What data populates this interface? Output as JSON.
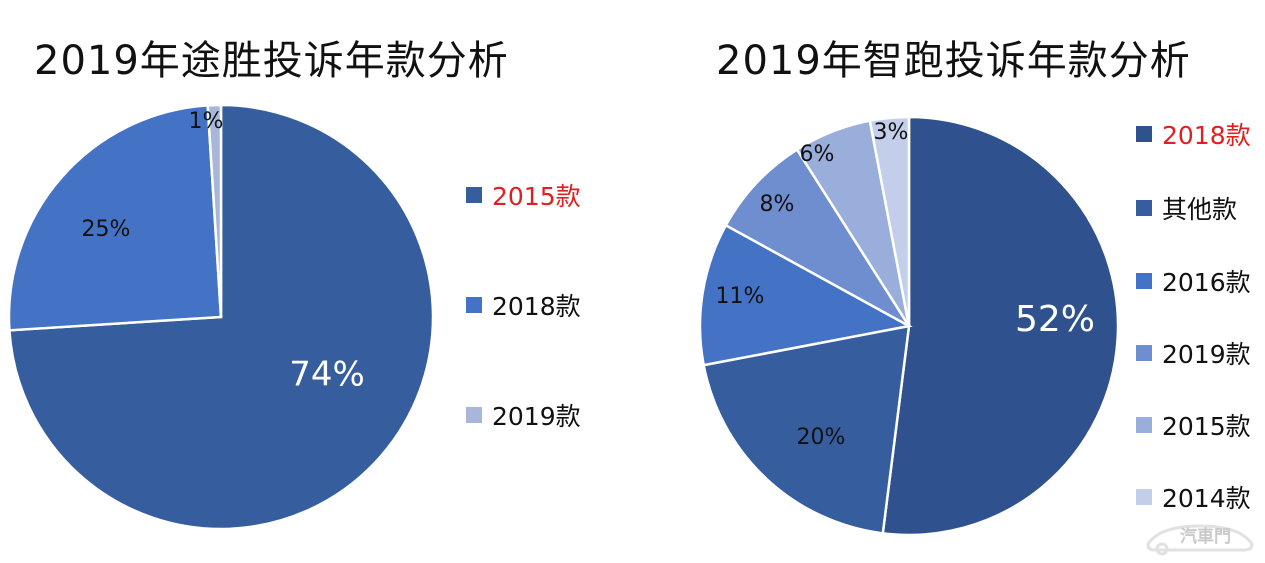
{
  "chart_data": [
    {
      "type": "pie",
      "title": "2019年途胜投诉年款分析",
      "labels": [
        "2015款",
        "2018款",
        "2019款"
      ],
      "values": [
        74,
        25,
        1
      ],
      "data_labels": [
        "74%",
        "25%",
        "1%"
      ],
      "colors": [
        "#365e9e",
        "#4472c4",
        "#a8b6da"
      ],
      "highlighted_legend": "2015款",
      "legend_position": "right"
    },
    {
      "type": "pie",
      "title": "2019年智跑投诉年款分析",
      "labels": [
        "2018款",
        "其他款",
        "2016款",
        "2019款",
        "2015款",
        "2014款"
      ],
      "values": [
        52,
        20,
        11,
        8,
        6,
        3
      ],
      "data_labels": [
        "52%",
        "20%",
        "11%",
        "8%",
        "6%",
        "3%"
      ],
      "colors": [
        "#2f528f",
        "#365e9e",
        "#4472c4",
        "#6f8ecf",
        "#9aaedb",
        "#c3cfea"
      ],
      "highlighted_legend": "2018款",
      "legend_position": "right"
    }
  ],
  "highlight_color": "#e02020",
  "watermark": "汽車門"
}
